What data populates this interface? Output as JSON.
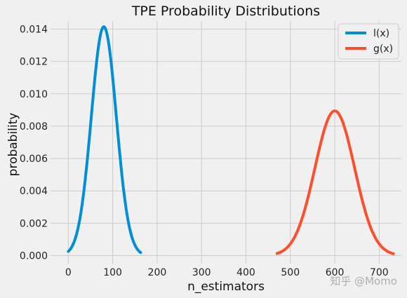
{
  "chart_data": {
    "type": "line",
    "title": "TPE Probability Distributions",
    "xlabel": "n_estimators",
    "ylabel": "probability",
    "xlim": [
      -40,
      750
    ],
    "ylim": [
      -0.0005,
      0.0145
    ],
    "xticks": [
      0,
      100,
      200,
      300,
      400,
      500,
      600,
      700
    ],
    "yticks": [
      0.0,
      0.002,
      0.004,
      0.006,
      0.008,
      0.01,
      0.012,
      0.014
    ],
    "ytick_labels": [
      "0.000",
      "0.002",
      "0.004",
      "0.006",
      "0.008",
      "0.010",
      "0.012",
      "0.014"
    ],
    "grid": true,
    "legend_position": "top-right",
    "series": [
      {
        "name": "l(x)",
        "color": "#008fd5",
        "mean": 80,
        "std": 28.2,
        "x_range": [
          0,
          163
        ],
        "x": [
          0,
          20,
          40,
          60,
          80,
          100,
          120,
          140,
          163
        ],
        "y": [
          0.0002,
          0.0015,
          0.0053,
          0.011,
          0.0141,
          0.011,
          0.0053,
          0.0015,
          0.0002
        ]
      },
      {
        "name": "g(x)",
        "color": "#e5ae38",
        "line_color": "#fc4f30",
        "mean": 600,
        "std": 44.6,
        "x_range": [
          470,
          732
        ],
        "x": [
          470,
          500,
          540,
          570,
          600,
          630,
          660,
          700,
          732
        ],
        "y": [
          0.0001,
          0.0007,
          0.0036,
          0.007,
          0.0089,
          0.007,
          0.0036,
          0.0007,
          0.0001
        ]
      }
    ]
  },
  "watermark": "知乎 @Momo"
}
